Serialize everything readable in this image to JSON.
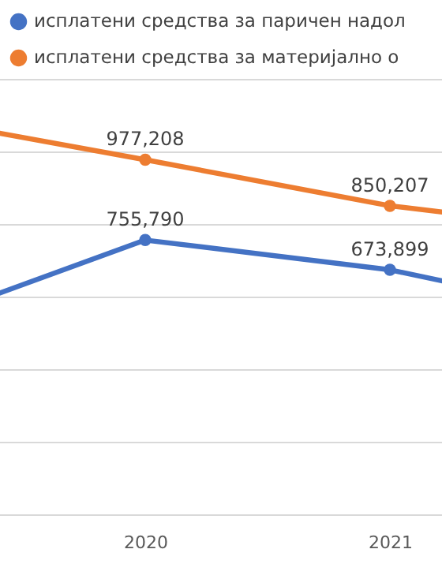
{
  "chart_data": {
    "type": "line",
    "categories": [
      null,
      "2020",
      "2021",
      null
    ],
    "series": [
      {
        "name": "исплатени средства за паричен надол",
        "color": "#4472c4",
        "values": [
          510000,
          755790,
          673899,
          530000
        ],
        "value_labels": [
          null,
          "755,790",
          "673,899",
          null
        ]
      },
      {
        "name": "исплатени средства за материјално о",
        "color": "#ed7d31",
        "values": [
          1100000,
          977208,
          850207,
          770000
        ],
        "value_labels": [
          null,
          "977,208",
          "850,207",
          null
        ]
      }
    ],
    "ylim": [
      0,
      1200000
    ],
    "yticks": [
      {
        "value": 0,
        "label": null
      },
      {
        "value": 200000,
        "label": null
      },
      {
        "value": 400000,
        "label": null
      },
      {
        "value": 600000,
        "label": null
      },
      {
        "value": 800000,
        "label": null
      },
      {
        "value": 1000000,
        "label": null
      },
      {
        "value": 1200000,
        "label": null
      }
    ],
    "tick_labels": "x",
    "grid": "y",
    "legend": "top left",
    "marker": "circle",
    "line_style": "solid"
  }
}
